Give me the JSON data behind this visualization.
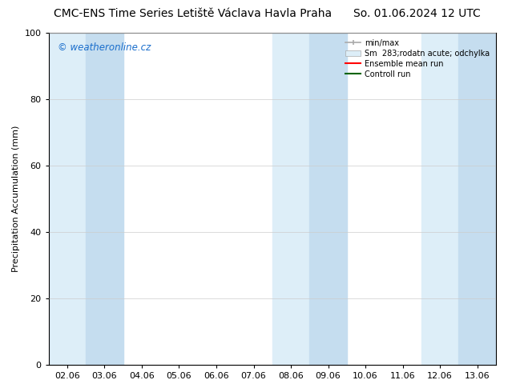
{
  "title_left": "CMC-ENS Time Series Letiště Václava Havla Praha",
  "title_right": "So. 01.06.2024 12 UTC",
  "ylabel": "Precipitation Accumulation (mm)",
  "ylim": [
    0,
    100
  ],
  "yticks": [
    0,
    20,
    40,
    60,
    80,
    100
  ],
  "x_labels": [
    "02.06",
    "03.06",
    "04.06",
    "05.06",
    "06.06",
    "07.06",
    "08.06",
    "09.06",
    "10.06",
    "11.06",
    "12.06",
    "13.06"
  ],
  "watermark": "© weatheronline.cz",
  "watermark_color": "#1a6ecc",
  "legend_entries": [
    "min/max",
    "Sm  283;rodatn acute; odchylka",
    "Ensemble mean run",
    "Controll run"
  ],
  "band_color_light": "#ddeef8",
  "band_color_medium": "#c5ddef",
  "background_color": "#ffffff",
  "fig_width": 6.34,
  "fig_height": 4.9,
  "dpi": 100,
  "title_fontsize": 10,
  "axis_fontsize": 8,
  "ylabel_fontsize": 8
}
